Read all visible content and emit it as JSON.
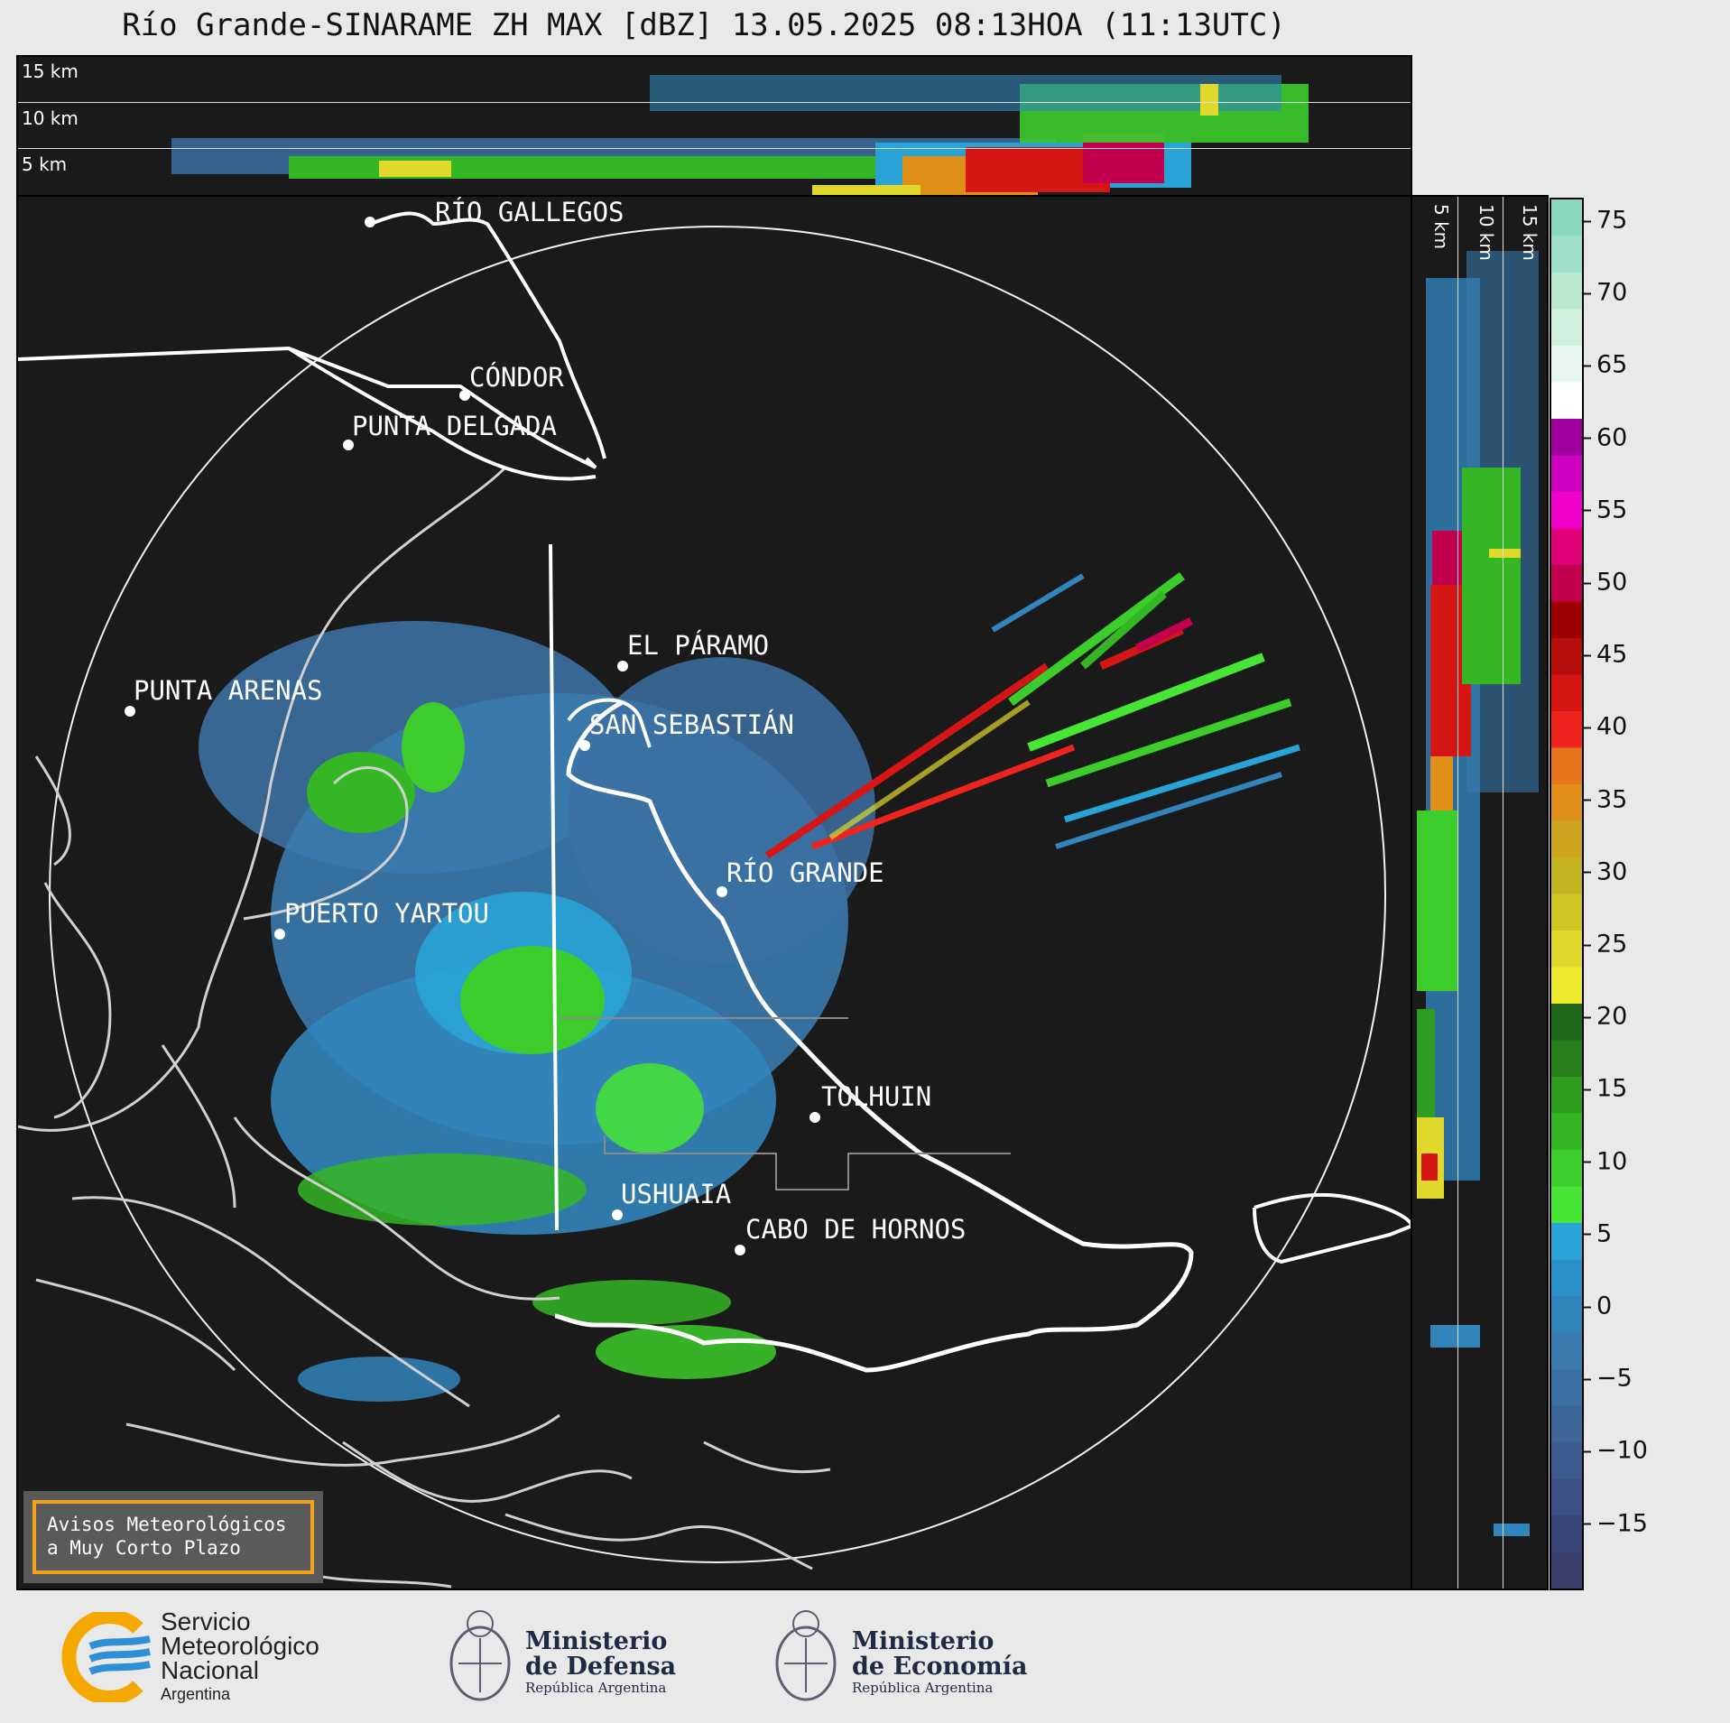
{
  "title": "Río Grande-SINARAME ZH MAX [dBZ] 13.05.2025 08:13HOA (11:13UTC)",
  "top_panel": {
    "altitude_labels": [
      "15 km",
      "10 km",
      "5 km"
    ]
  },
  "side_panel": {
    "altitude_labels": [
      "5 km",
      "10 km",
      "15 km"
    ]
  },
  "colorbar": {
    "unit": "dBZ",
    "ticks": [
      "75",
      "70",
      "65",
      "60",
      "55",
      "50",
      "45",
      "40",
      "35",
      "30",
      "25",
      "20",
      "15",
      "10",
      "5",
      "0",
      "−5",
      "−10",
      "−15"
    ],
    "colors": [
      "#3b3f6e",
      "#3a4678",
      "#3b5083",
      "#3d5b8e",
      "#3d6698",
      "#3c70a2",
      "#3a7aad",
      "#3285bb",
      "#2a90c8",
      "#29a3d6",
      "#47e634",
      "#3ccd2c",
      "#35b625",
      "#2f9e20",
      "#297f1b",
      "#23691a",
      "#f0ea2f",
      "#e0d82a",
      "#cfc626",
      "#c4b520",
      "#cfa520",
      "#e08f18",
      "#e6741a",
      "#f0241e",
      "#d61515",
      "#b80e0e",
      "#9e0000",
      "#c2004d",
      "#e0007a",
      "#f000c8",
      "#d000c0",
      "#a000a0",
      "#ffffff",
      "#e8f8f0",
      "#d0f0e0",
      "#b8e8d0",
      "#a0e0c8",
      "#88d8c0"
    ]
  },
  "cities": [
    {
      "name": "RÍO GALLEGOS"
    },
    {
      "name": "CÓNDOR"
    },
    {
      "name": "PUNTA DELGADA"
    },
    {
      "name": "EL PÁRAMO"
    },
    {
      "name": "PUNTA ARENAS"
    },
    {
      "name": "SAN SEBASTIÁN"
    },
    {
      "name": "RÍO GRANDE"
    },
    {
      "name": "PUERTO YARTOU"
    },
    {
      "name": "TOLHUIN"
    },
    {
      "name": "USHUAIA"
    },
    {
      "name": "CABO DE HORNOS"
    }
  ],
  "notice": {
    "line1": "Avisos Meteorológicos",
    "line2": "a Muy Corto Plazo"
  },
  "logos": {
    "smn": {
      "line1": "Servicio",
      "line2": "Meteorológico",
      "line3": "Nacional",
      "line4": "Argentina"
    },
    "defensa": {
      "line1": "Ministerio",
      "line2": "de Defensa",
      "line3": "República Argentina"
    },
    "economia": {
      "line1": "Ministerio",
      "line2": "de Economía",
      "line3": "República Argentina"
    }
  }
}
